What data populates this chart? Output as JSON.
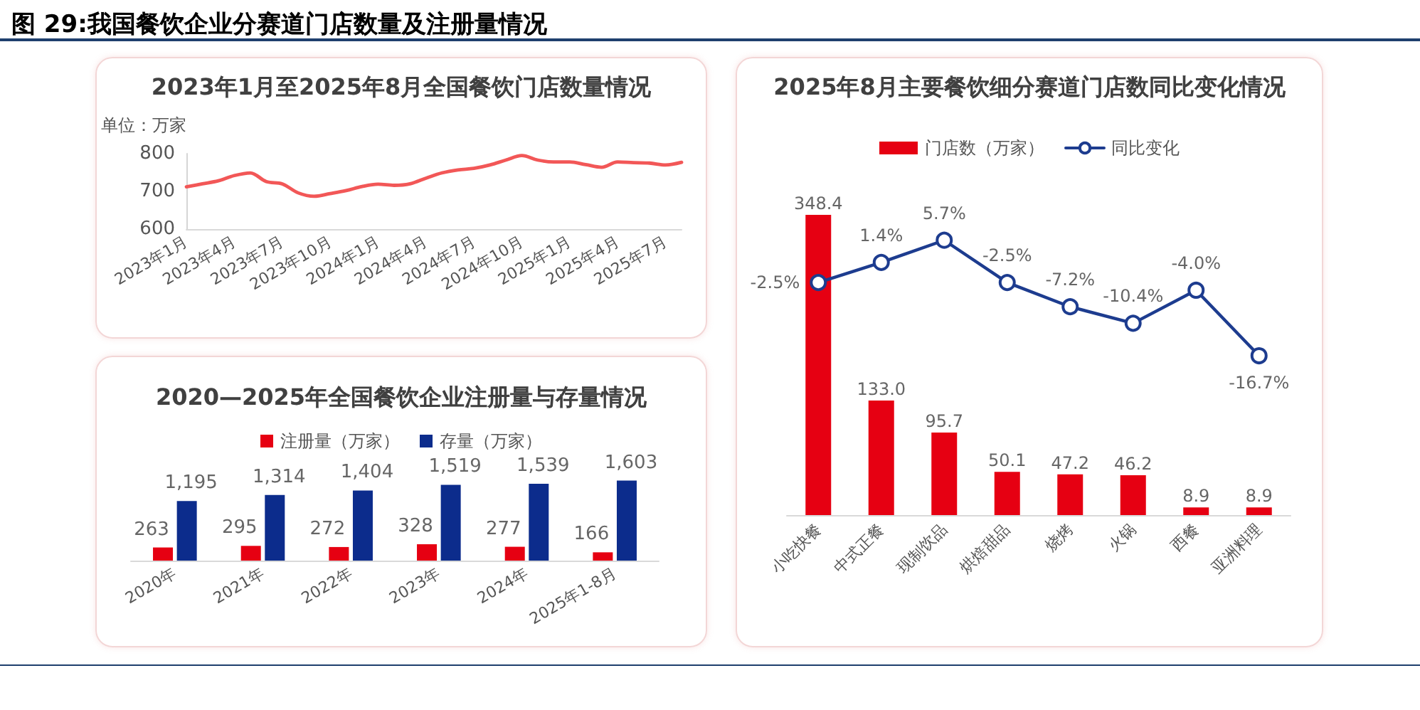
{
  "chart_data": [
    {
      "type": "other",
      "title": "图 29:我国餐饮企业分赛道门店数量及注册量情况"
    },
    {
      "type": "line",
      "title": "2023年1月至2025年8月全国餐饮门店数量情况",
      "ylabel": "单位：万家",
      "categories": [
        "2023年1月",
        null,
        null,
        "2023年4月",
        null,
        null,
        "2023年7月",
        null,
        null,
        "2023年10月",
        null,
        null,
        "2024年1月",
        null,
        null,
        "2024年4月",
        null,
        null,
        "2024年7月",
        null,
        null,
        "2024年10月",
        null,
        null,
        "2025年1月",
        null,
        null,
        "2025年4月",
        null,
        null,
        "2025年7月",
        null
      ],
      "values": [
        712,
        720,
        728,
        742,
        749,
        726,
        720,
        696,
        687,
        694,
        702,
        713,
        719,
        716,
        720,
        735,
        749,
        757,
        761,
        770,
        783,
        795,
        783,
        778,
        778,
        771,
        764,
        778,
        776,
        775,
        770,
        777
      ],
      "color": "#f25757",
      "ylim": [
        600,
        800
      ],
      "yticks": [
        600,
        700,
        800
      ],
      "grid": false,
      "marker": "none",
      "line_style": "solid"
    },
    {
      "type": "bar",
      "title": "2020—2025年全国餐饮企业注册量与存量情况",
      "categories": [
        "2020年",
        "2021年",
        "2022年",
        "2023年",
        "2024年",
        "2025年1-8月"
      ],
      "series": [
        {
          "name": "注册量（万家）",
          "color": "#e60012",
          "values": [
            263,
            295,
            272,
            328,
            277,
            166
          ],
          "value_labels": [
            "263",
            "295",
            "272",
            "328",
            "277",
            "166"
          ]
        },
        {
          "name": "存量（万家）",
          "color": "#0c2c8c",
          "values": [
            1195,
            1314,
            1404,
            1519,
            1539,
            1603
          ],
          "value_labels": [
            "1,195",
            "1,314",
            "1,404",
            "1,519",
            "1,539",
            "1,603"
          ]
        }
      ],
      "legend": "top",
      "grid": false
    },
    {
      "type": "bar",
      "title": "2025年8月主要餐饮细分赛道门店数同比变化情况",
      "categories": [
        "小吃快餐",
        "中式正餐",
        "现制饮品",
        "烘焙甜品",
        "烧烤",
        "火锅",
        "西餐",
        "亚洲料理"
      ],
      "series": [
        {
          "name": "门店数（万家）",
          "color": "#e60012",
          "values": [
            348.4,
            133.0,
            95.7,
            50.1,
            47.2,
            46.2,
            8.9,
            8.9
          ],
          "value_labels": [
            "348.4",
            "133.0",
            "95.7",
            "50.1",
            "47.2",
            "46.2",
            "8.9",
            "8.9"
          ]
        },
        {
          "name": "同比变化",
          "type": "line",
          "axis": "y2",
          "color": "#1d3c8f",
          "values": [
            -2.5,
            1.4,
            5.7,
            -2.5,
            -7.2,
            -10.4,
            -4.0,
            -16.7
          ],
          "value_labels": [
            "-2.5%",
            "1.4%",
            "5.7%",
            "-2.5%",
            "-7.2%",
            "-10.4%",
            "-4.0%",
            "-16.7%"
          ]
        }
      ],
      "legend": "top",
      "grid": false,
      "marker": "circle",
      "line_style": "solid"
    }
  ]
}
